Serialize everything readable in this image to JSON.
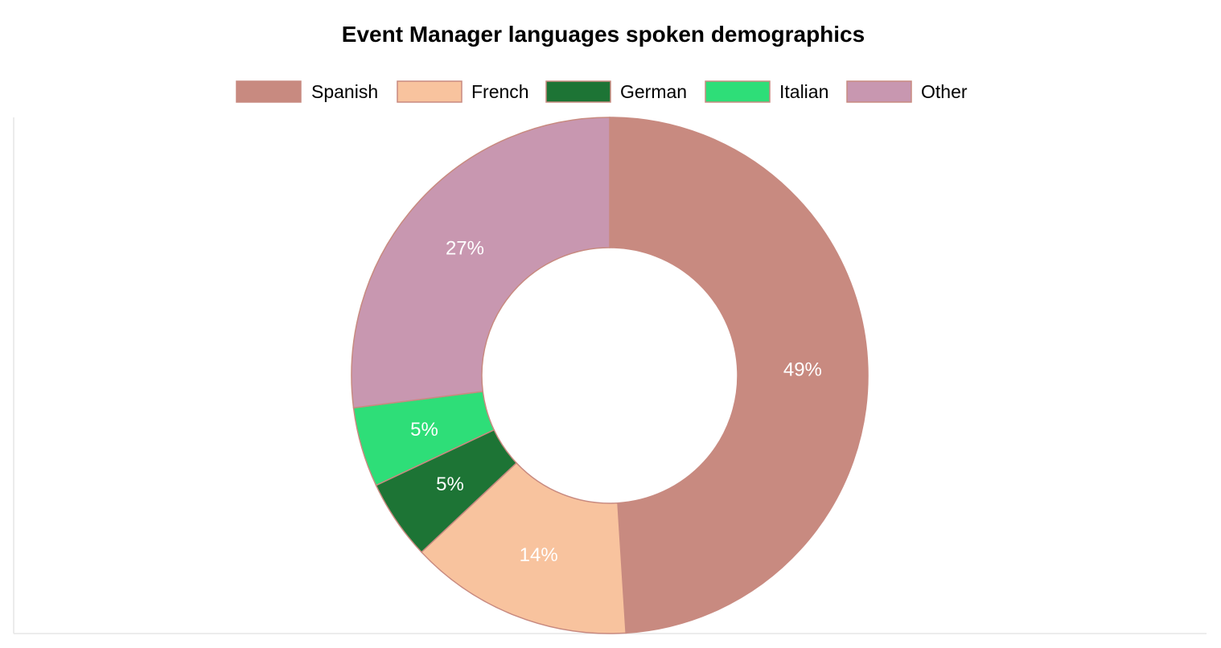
{
  "chart_data": {
    "type": "pie",
    "variant": "doughnut",
    "title": "Event Manager languages spoken demographics",
    "legend_position": "top",
    "categories": [
      "Spanish",
      "French",
      "German",
      "Italian",
      "Other"
    ],
    "values": [
      49,
      14,
      5,
      5,
      27
    ],
    "labels": [
      "49%",
      "14%",
      "5%",
      "5%",
      "27%"
    ],
    "colors": [
      "#c88a80",
      "#f8c39e",
      "#1d7435",
      "#2ede78",
      "#c897b0"
    ],
    "border_color": "#c88a80",
    "label_color": "#ffffff"
  }
}
